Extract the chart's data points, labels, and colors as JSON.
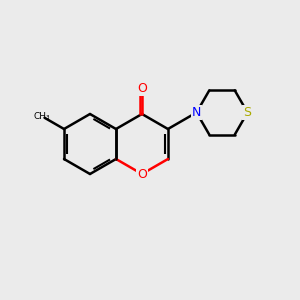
{
  "background_color": "#ebebeb",
  "bond_color": "#000000",
  "bond_lw": 1.8,
  "atom_colors": {
    "O_carbonyl": "#ff0000",
    "O_ring": "#ff0000",
    "N": "#0000cc",
    "S": "#cccc00"
  },
  "methyl_label": "CH₃",
  "O_label": "O",
  "N_label": "N",
  "S_label": "S"
}
